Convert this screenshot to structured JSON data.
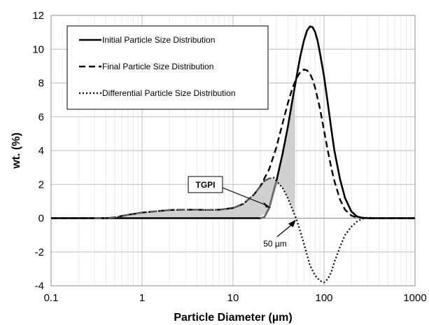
{
  "chart_data": {
    "type": "line",
    "xlabel": "Particle Diameter (µm)",
    "ylabel": "wt. (%)",
    "x_scale": "log",
    "xlim": [
      0.1,
      1000
    ],
    "ylim": [
      -4,
      12
    ],
    "x_ticks": [
      "0.1",
      "1",
      "10",
      "100",
      "1000"
    ],
    "y_ticks": [
      "-4",
      "-2",
      "0",
      "2",
      "4",
      "6",
      "8",
      "10",
      "12"
    ],
    "grid": true,
    "legend": "top-left",
    "series": [
      {
        "name": "Initial Particle Size Distribution",
        "style": "solid",
        "x": [
          0.1,
          1,
          10,
          20,
          22,
          25,
          30,
          35,
          40,
          45,
          50,
          55,
          60,
          65,
          70,
          75,
          80,
          85,
          90,
          100,
          110,
          120,
          130,
          150,
          170,
          200,
          230,
          260,
          300,
          350,
          1000
        ],
        "y": [
          0,
          0,
          0,
          0,
          0.05,
          0.6,
          2.2,
          3.8,
          5.4,
          7.0,
          8.4,
          9.6,
          10.5,
          11.1,
          11.35,
          11.3,
          11.0,
          10.5,
          9.8,
          8.4,
          6.8,
          5.3,
          4.0,
          2.3,
          1.2,
          0.4,
          0.1,
          0.03,
          0,
          0,
          0
        ]
      },
      {
        "name": "Final Particle Size Distribution",
        "style": "dashed",
        "x": [
          0.1,
          0.3,
          0.4,
          0.5,
          0.7,
          1,
          1.5,
          2,
          3,
          4,
          5,
          7,
          10,
          13,
          17,
          20,
          25,
          30,
          35,
          40,
          45,
          50,
          55,
          60,
          65,
          70,
          75,
          80,
          90,
          100,
          110,
          120,
          130,
          150,
          170,
          200,
          230,
          260,
          300,
          350,
          1000
        ],
        "y": [
          0,
          0,
          0,
          0.05,
          0.2,
          0.33,
          0.42,
          0.48,
          0.5,
          0.5,
          0.49,
          0.5,
          0.6,
          0.85,
          1.4,
          1.9,
          2.9,
          4.2,
          5.6,
          6.8,
          7.7,
          8.3,
          8.65,
          8.8,
          8.75,
          8.55,
          8.2,
          7.7,
          6.5,
          5.2,
          4.0,
          3.0,
          2.2,
          1.1,
          0.5,
          0.15,
          0.04,
          0.01,
          0,
          0,
          0
        ]
      },
      {
        "name": "Differential Particle Size Distribution",
        "style": "dotted",
        "x": [
          0.1,
          0.3,
          0.4,
          0.5,
          0.7,
          1,
          1.5,
          2,
          3,
          4,
          5,
          7,
          10,
          13,
          17,
          20,
          22,
          25,
          28,
          30,
          35,
          40,
          45,
          50,
          55,
          60,
          70,
          80,
          90,
          100,
          110,
          120,
          130,
          150,
          170,
          200,
          230,
          260,
          280,
          300,
          350,
          1000
        ],
        "y": [
          0,
          0,
          0,
          0.05,
          0.2,
          0.33,
          0.42,
          0.48,
          0.5,
          0.5,
          0.49,
          0.5,
          0.6,
          0.85,
          1.4,
          1.9,
          2.2,
          2.35,
          2.4,
          2.2,
          1.8,
          1.2,
          0.5,
          -0.1,
          -0.8,
          -1.5,
          -2.8,
          -3.4,
          -3.7,
          -3.8,
          -3.6,
          -3.2,
          -2.6,
          -1.7,
          -1.0,
          -0.5,
          -0.2,
          -0.05,
          0,
          0.05,
          0,
          0
        ]
      }
    ],
    "annotations": [
      {
        "text": "TGPI",
        "style": "boxed-bold",
        "points_to": {
          "x": 26,
          "y": 0.6
        }
      },
      {
        "text": "50 µm",
        "points_to": {
          "x": 50,
          "y": 0
        }
      }
    ]
  }
}
